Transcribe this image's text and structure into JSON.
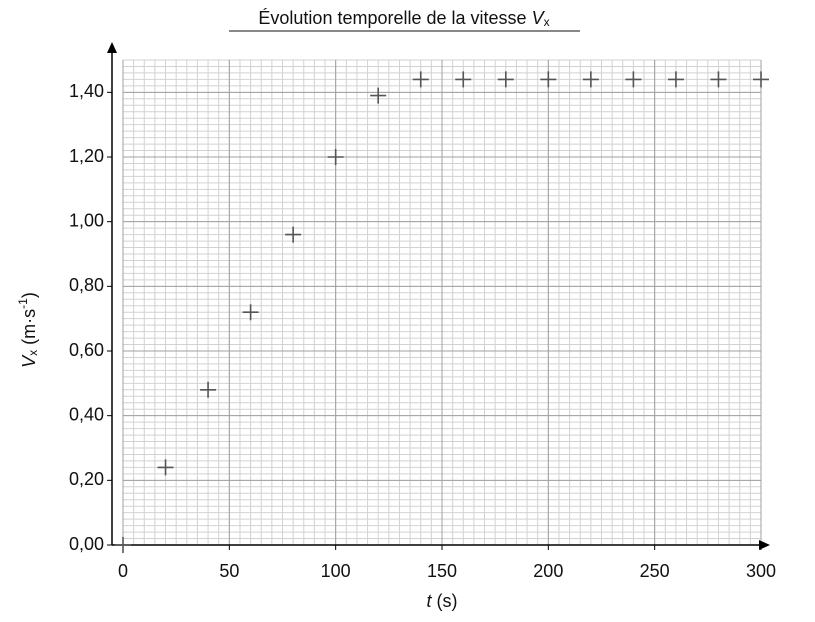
{
  "chart_data": {
    "type": "scatter",
    "title": {
      "text": "Évolution temporelle de la vitesse",
      "symbol": "V",
      "subscript": "x"
    },
    "x_label": {
      "symbol": "t",
      "unit": "(s)"
    },
    "y_label": {
      "symbol": "V",
      "subscript": "x",
      "unit": "(m·s",
      "exponent": "-1",
      "close": ")"
    },
    "x": [
      0,
      20,
      40,
      60,
      80,
      100,
      120,
      140,
      160,
      180,
      200,
      220,
      240,
      260,
      280,
      300
    ],
    "series": [
      {
        "color": "#555555",
        "values": [
          0,
          0.24,
          0.48,
          0.72,
          0.96,
          1.2,
          1.39,
          1.44,
          1.44,
          1.44,
          1.44,
          1.44,
          1.44,
          1.44,
          1.44,
          1.44
        ]
      }
    ],
    "xlim": [
      0,
      300
    ],
    "ylim": [
      0,
      1.5
    ],
    "xticks": [
      0,
      50,
      100,
      150,
      200,
      250,
      300
    ],
    "yticks": [
      {
        "value": 0,
        "label": "0,00"
      },
      {
        "value": 0.2,
        "label": "0,20"
      },
      {
        "value": 0.4,
        "label": "0,40"
      },
      {
        "value": 0.6,
        "label": "0,60"
      },
      {
        "value": 0.8,
        "label": "0,80"
      },
      {
        "value": 1.0,
        "label": "1,00"
      },
      {
        "value": 1.2,
        "label": "1,20"
      },
      {
        "value": 1.4,
        "label": "1,40"
      }
    ],
    "grid": true,
    "minor_grid": {
      "x": 5,
      "y": 0.02
    }
  }
}
